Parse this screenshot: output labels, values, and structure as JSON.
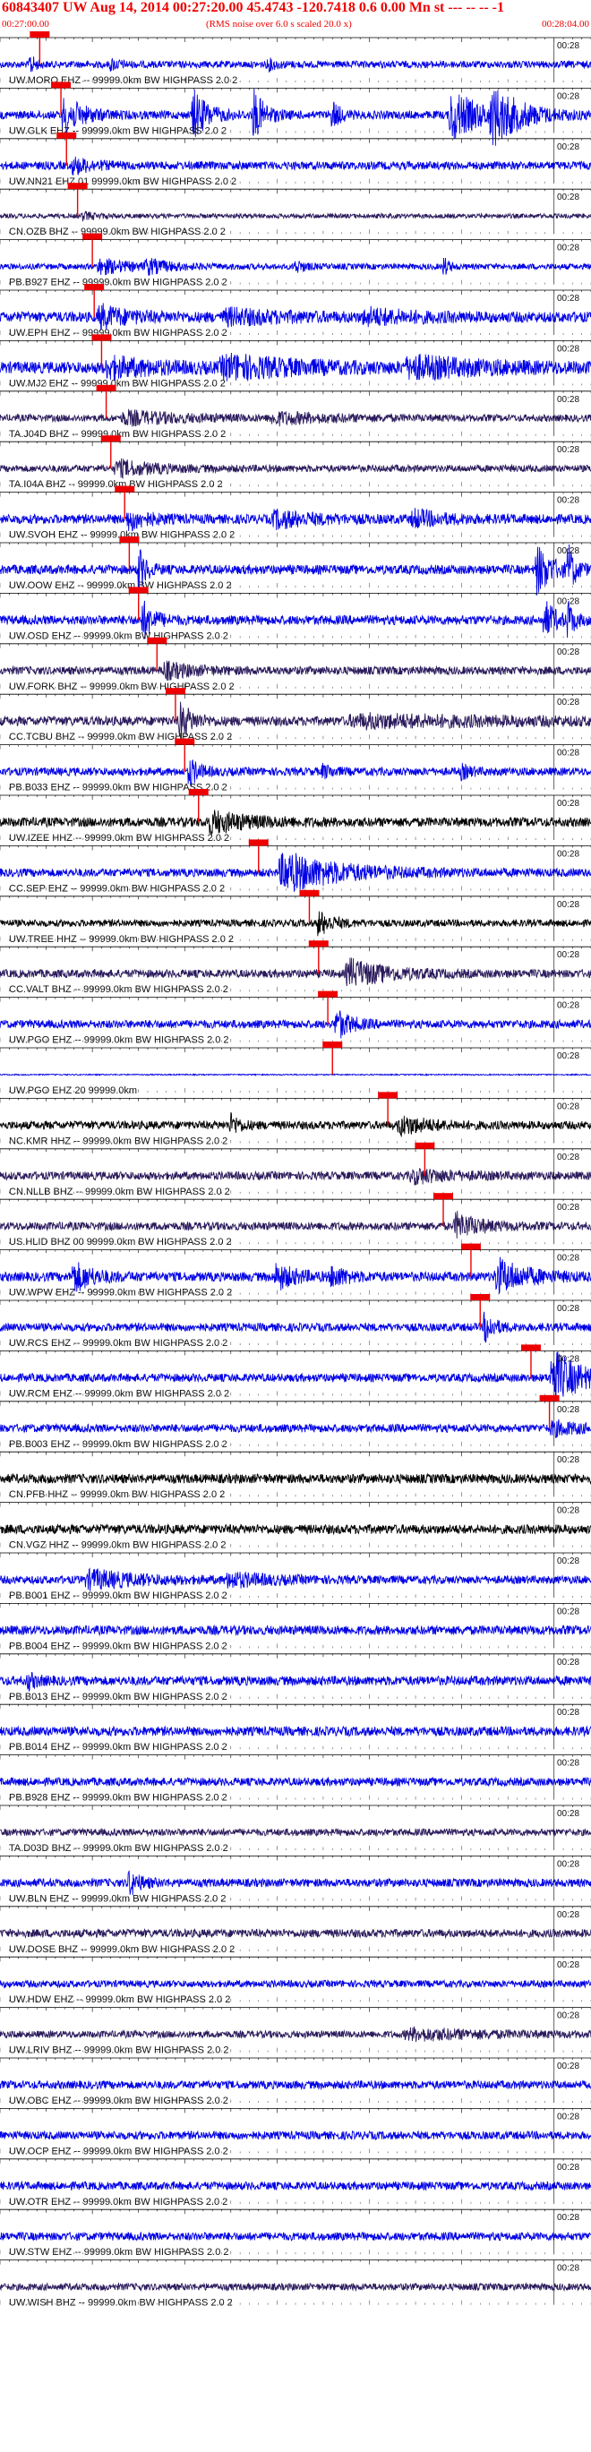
{
  "header": {
    "title": "60843407 UW Aug 14, 2014 00:27:20.00    45.4743 -120.7418  0.6 0.00 Mn st --- -- --  -1",
    "start_time": "00:27:00.00",
    "note": "(RMS noise over 6.0 s scaled 20.0 x)",
    "end_time": "00:28:04.00"
  },
  "colors": {
    "trace_blue": "#0000e6",
    "trace_dark": "#2a1a5c",
    "trace_black": "#000000",
    "pick_red": "#ee0000",
    "grid": "#000000"
  },
  "chart_data": {
    "type": "line",
    "x_range": [
      "00:27:00.00",
      "00:28:04.00"
    ],
    "tick_label": "00:28",
    "tick_seconds": 60,
    "total_seconds": 64,
    "traces": [
      {
        "label": "UW.MORO EHZ -- 99999.0km BW  HIGHPASS  2.0  2",
        "color": "blue",
        "pick": 4.3,
        "amp": 0.3,
        "bursts": [
          [
            3.2,
            0.5,
            1.0
          ],
          [
            12,
            1.0,
            0.4
          ],
          [
            29,
            1.0,
            0.4
          ]
        ]
      },
      {
        "label": "UW.GLK EHZ -- 99999.0km BW  HIGHPASS  2.0  2",
        "color": "blue",
        "pick": 6.6,
        "amp": 0.35,
        "bursts": [
          [
            7,
            2.0,
            1.5
          ],
          [
            21,
            1.5,
            2.0
          ],
          [
            27.5,
            1.2,
            2.0
          ],
          [
            36,
            0.8,
            1.2
          ],
          [
            49,
            3.0,
            2.0
          ],
          [
            53.5,
            3.0,
            2.0
          ]
        ]
      },
      {
        "label": "UW.NN21 EHZ 01 99999.0km BW  HIGHPASS  2.0  2",
        "color": "blue",
        "pick": 7.2,
        "amp": 0.35,
        "bursts": [
          [
            8,
            2.0,
            0.6
          ]
        ]
      },
      {
        "label": "CN.OZB BHZ -- 99999.0km BW  HIGHPASS  2.0  2",
        "color": "dark",
        "pick": 8.4,
        "amp": 0.2,
        "bursts": [
          [
            9,
            1.5,
            0.3
          ]
        ]
      },
      {
        "label": "PB.B927 EHZ -- 99999.0km BW  HIGHPASS  2.0  2",
        "color": "blue",
        "pick": 10.0,
        "amp": 0.25,
        "bursts": [
          [
            11,
            3.0,
            0.6
          ],
          [
            16,
            2.5,
            0.5
          ],
          [
            32,
            1.0,
            0.5
          ],
          [
            48,
            0.6,
            0.8
          ]
        ]
      },
      {
        "label": "UW.EPH EHZ -- 99999.0km BW  HIGHPASS  2.0  2",
        "color": "blue",
        "pick": 10.2,
        "amp": 0.45,
        "bursts": [
          [
            11,
            3.0,
            0.8
          ],
          [
            25,
            6.0,
            0.5
          ],
          [
            40,
            5.0,
            0.5
          ]
        ]
      },
      {
        "label": "UW.MJ2 EHZ -- 99999.0km BW  HIGHPASS  2.0  2",
        "color": "blue",
        "pick": 11.0,
        "amp": 0.5,
        "bursts": [
          [
            12,
            5.0,
            0.7
          ],
          [
            25,
            8.0,
            0.8
          ],
          [
            45,
            8.0,
            0.7
          ]
        ]
      },
      {
        "label": "TA.J04D BHZ -- 99999.0km BW  HIGHPASS  2.0  2",
        "color": "dark",
        "pick": 11.5,
        "amp": 0.3,
        "bursts": [
          [
            14,
            6.0,
            0.5
          ],
          [
            30,
            6.0,
            0.4
          ]
        ]
      },
      {
        "label": "TA.I04A BHZ -- 99999.0km BW  HIGHPASS  2.0  2",
        "color": "dark",
        "pick": 12.0,
        "amp": 0.3,
        "bursts": [
          [
            13,
            4.0,
            0.6
          ]
        ]
      },
      {
        "label": "UW.SVOH EHZ -- 99999.0km BW  HIGHPASS  2.0  2",
        "color": "blue",
        "pick": 13.5,
        "amp": 0.4,
        "bursts": [
          [
            14,
            2.0,
            0.8
          ],
          [
            30,
            4.0,
            0.6
          ],
          [
            45,
            3.0,
            0.6
          ]
        ]
      },
      {
        "label": "UW.OOW EHZ -- 99999.0km BW  HIGHPASS  2.0  2",
        "color": "blue",
        "pick": 14.0,
        "amp": 0.4,
        "bursts": [
          [
            15,
            0.8,
            1.8
          ],
          [
            58.2,
            1.5,
            2.0
          ],
          [
            61.5,
            0.7,
            2.0
          ]
        ]
      },
      {
        "label": "UW.OSD EHZ -- 99999.0km BW  HIGHPASS  2.0  2",
        "color": "blue",
        "pick": 15.0,
        "amp": 0.4,
        "bursts": [
          [
            15.5,
            1.2,
            1.5
          ],
          [
            59,
            1.2,
            1.5
          ],
          [
            61.5,
            0.6,
            1.5
          ]
        ]
      },
      {
        "label": "UW.FORK BHZ -- 99999.0km BW  HIGHPASS  2.0  2",
        "color": "dark",
        "pick": 17.0,
        "amp": 0.35,
        "bursts": [
          [
            18,
            3.0,
            0.6
          ]
        ]
      },
      {
        "label": "CC.TCBU BHZ -- 99999.0km BW  HIGHPASS  2.0  2",
        "color": "dark",
        "pick": 19.0,
        "amp": 0.4,
        "bursts": [
          [
            19.5,
            1.2,
            1.6
          ],
          [
            40,
            15.0,
            0.4
          ]
        ]
      },
      {
        "label": "PB.B033 EHZ -- 99999.0km BW  HIGHPASS  2.0  2",
        "color": "blue",
        "pick": 20.0,
        "amp": 0.35,
        "bursts": [
          [
            20.5,
            1.0,
            1.2
          ],
          [
            35,
            1.0,
            0.5
          ],
          [
            50,
            1.0,
            0.5
          ]
        ]
      },
      {
        "label": "UW.IZEE HHZ -- 99999.0km BW  HIGHPASS  2.0  2",
        "color": "black",
        "pick": 21.5,
        "amp": 0.4,
        "bursts": [
          [
            23,
            4.0,
            0.8
          ]
        ]
      },
      {
        "label": "CC.SEP EHZ -- 99999.0km BW  HIGHPASS  2.0  2",
        "color": "blue",
        "pick": 28.0,
        "amp": 0.35,
        "bursts": [
          [
            31,
            6.0,
            1.6
          ]
        ]
      },
      {
        "label": "UW.TREE HHZ -- 99999.0km BW  HIGHPASS  2.0  2",
        "color": "black",
        "pick": 33.5,
        "amp": 0.3,
        "bursts": [
          [
            34.5,
            1.5,
            1.0
          ]
        ]
      },
      {
        "label": "CC.VALT BHZ -- 99999.0km BW  HIGHPASS  2.0  2",
        "color": "dark",
        "pick": 34.5,
        "amp": 0.35,
        "bursts": [
          [
            38,
            4.0,
            1.1
          ]
        ]
      },
      {
        "label": "UW.PGO EHZ -- 99999.0km BW  HIGHPASS  2.0  2",
        "color": "blue",
        "pick": 35.5,
        "amp": 0.35,
        "bursts": [
          [
            36.5,
            1.5,
            1.2
          ]
        ]
      },
      {
        "label": "UW.PGO EHZ 20 99999.0km",
        "color": "blue",
        "pick": 36.0,
        "amp": 0.05,
        "bursts": []
      },
      {
        "label": "NC.KMR HHZ -- 99999.0km BW  HIGHPASS  2.0  2",
        "color": "black",
        "pick": 42.0,
        "amp": 0.35,
        "bursts": [
          [
            25,
            1.0,
            0.8
          ],
          [
            43.5,
            3.0,
            0.7
          ]
        ]
      },
      {
        "label": "CN.NLLB BHZ -- 99999.0km BW  HIGHPASS  2.0  2",
        "color": "dark",
        "pick": 46.0,
        "amp": 0.35,
        "bursts": [
          [
            45,
            4.0,
            0.5
          ]
        ]
      },
      {
        "label": "US.HLID BHZ 00 99999.0km BW  HIGHPASS  2.0  2",
        "color": "dark",
        "pick": 48.0,
        "amp": 0.35,
        "bursts": [
          [
            49.5,
            2.5,
            1.0
          ]
        ]
      },
      {
        "label": "UW.WPW EHZ -- 99999.0km BW  HIGHPASS  2.0  2",
        "color": "blue",
        "pick": 51.0,
        "amp": 0.4,
        "bursts": [
          [
            8,
            2.0,
            1.2
          ],
          [
            30,
            2.0,
            1.0
          ],
          [
            36,
            1.5,
            0.8
          ],
          [
            54,
            3.0,
            1.4
          ]
        ]
      },
      {
        "label": "UW.RCS EHZ -- 99999.0km BW  HIGHPASS  2.0  2",
        "color": "blue",
        "pick": 52.0,
        "amp": 0.35,
        "bursts": [
          [
            52.5,
            1.0,
            1.3
          ]
        ]
      },
      {
        "label": "UW.RCM EHZ -- 99999.0km BW  HIGHPASS  2.0  2",
        "color": "blue",
        "pick": 57.5,
        "amp": 0.35,
        "bursts": [
          [
            60,
            3.0,
            2.2
          ]
        ]
      },
      {
        "label": "PB.B003 EHZ -- 99999.0km BW  HIGHPASS  2.0  2",
        "color": "blue",
        "pick": 59.5,
        "amp": 0.35,
        "bursts": [
          [
            60,
            3.0,
            0.5
          ]
        ]
      },
      {
        "label": "CN.PFB HHZ -- 99999.0km BW  HIGHPASS  2.0  2",
        "color": "black",
        "pick": null,
        "amp": 0.4,
        "bursts": []
      },
      {
        "label": "CN.VGZ HHZ -- 99999.0km BW  HIGHPASS  2.0  2",
        "color": "black",
        "pick": null,
        "amp": 0.4,
        "bursts": []
      },
      {
        "label": "PB.B001 EHZ -- 99999.0km BW  HIGHPASS  2.0  2",
        "color": "blue",
        "pick": null,
        "amp": 0.35,
        "bursts": [
          [
            10,
            5.0,
            0.7
          ],
          [
            25,
            4.0,
            0.5
          ]
        ]
      },
      {
        "label": "PB.B004 EHZ -- 99999.0km BW  HIGHPASS  2.0  2",
        "color": "blue",
        "pick": null,
        "amp": 0.4,
        "bursts": []
      },
      {
        "label": "PB.B013 EHZ -- 99999.0km BW  HIGHPASS  2.0  2",
        "color": "blue",
        "pick": null,
        "amp": 0.4,
        "bursts": [
          [
            3,
            1.0,
            0.6
          ]
        ]
      },
      {
        "label": "PB.B014 EHZ -- 99999.0km BW  HIGHPASS  2.0  2",
        "color": "blue",
        "pick": null,
        "amp": 0.4,
        "bursts": []
      },
      {
        "label": "PB.B928 EHZ -- 99999.0km BW  HIGHPASS  2.0  2",
        "color": "blue",
        "pick": null,
        "amp": 0.35,
        "bursts": []
      },
      {
        "label": "TA.D03D BHZ -- 99999.0km BW  HIGHPASS  2.0  2",
        "color": "dark",
        "pick": null,
        "amp": 0.3,
        "bursts": []
      },
      {
        "label": "UW.BLN EHZ -- 99999.0km BW  HIGHPASS  2.0  2",
        "color": "blue",
        "pick": null,
        "amp": 0.35,
        "bursts": [
          [
            14,
            1.2,
            1.0
          ]
        ]
      },
      {
        "label": "UW.DOSE BHZ -- 99999.0km BW  HIGHPASS  2.0  2",
        "color": "dark",
        "pick": null,
        "amp": 0.35,
        "bursts": []
      },
      {
        "label": "UW.HDW EHZ -- 99999.0km BW  HIGHPASS  2.0  2",
        "color": "blue",
        "pick": null,
        "amp": 0.3,
        "bursts": []
      },
      {
        "label": "UW.LRIV BHZ -- 99999.0km BW  HIGHPASS  2.0  2",
        "color": "dark",
        "pick": null,
        "amp": 0.3,
        "bursts": [
          [
            45,
            8.0,
            0.4
          ]
        ]
      },
      {
        "label": "UW.OBC EHZ -- 99999.0km BW  HIGHPASS  2.0  2",
        "color": "blue",
        "pick": null,
        "amp": 0.35,
        "bursts": []
      },
      {
        "label": "UW.OCP EHZ -- 99999.0km BW  HIGHPASS  2.0  2",
        "color": "blue",
        "pick": null,
        "amp": 0.35,
        "bursts": []
      },
      {
        "label": "UW.OTR EHZ -- 99999.0km BW  HIGHPASS  2.0  2",
        "color": "blue",
        "pick": null,
        "amp": 0.35,
        "bursts": []
      },
      {
        "label": "UW.STW EHZ -- 99999.0km BW  HIGHPASS  2.0  2",
        "color": "blue",
        "pick": null,
        "amp": 0.35,
        "bursts": []
      },
      {
        "label": "UW.WISH BHZ -- 99999.0km BW  HIGHPASS  2.0  2",
        "color": "dark",
        "pick": null,
        "amp": 0.3,
        "bursts": []
      }
    ]
  }
}
